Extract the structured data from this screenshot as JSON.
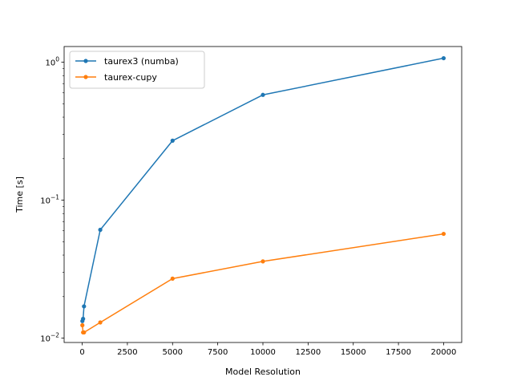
{
  "chart_data": {
    "type": "line",
    "title": "",
    "xlabel": "Model Resolution",
    "ylabel": "Time [s]",
    "xlim": [
      -1000,
      21000
    ],
    "ylim": [
      0.0093,
      1.3
    ],
    "yscale": "log",
    "grid": false,
    "legend_position": "top-left",
    "x_ticks": [
      0,
      2500,
      5000,
      7500,
      10000,
      12500,
      15000,
      17500,
      20000
    ],
    "x_tick_labels": [
      "0",
      "2500",
      "5000",
      "7500",
      "10000",
      "12500",
      "15000",
      "17500",
      "20000"
    ],
    "y_major_ticks": [
      0.01,
      0.1,
      1
    ],
    "y_tick_labels": [
      {
        "base": "10",
        "exp": "−2"
      },
      {
        "base": "10",
        "exp": "−1"
      },
      {
        "base": "10",
        "exp": "0"
      }
    ],
    "y_minor_ticks": [
      0.02,
      0.03,
      0.04,
      0.05,
      0.06,
      0.07,
      0.08,
      0.09,
      0.2,
      0.3,
      0.4,
      0.5,
      0.6,
      0.7,
      0.8,
      0.9
    ],
    "series": [
      {
        "name": "taurex3 (numba)",
        "color": "#1f77b4",
        "x": [
          10,
          50,
          100,
          1000,
          5000,
          10000,
          20000
        ],
        "y": [
          0.0133,
          0.0138,
          0.017,
          0.061,
          0.27,
          0.58,
          1.07
        ]
      },
      {
        "name": "taurex-cupy",
        "color": "#ff7f0e",
        "x": [
          10,
          50,
          100,
          1000,
          5000,
          10000,
          20000
        ],
        "y": [
          0.0124,
          0.011,
          0.011,
          0.013,
          0.027,
          0.036,
          0.057
        ]
      }
    ]
  }
}
